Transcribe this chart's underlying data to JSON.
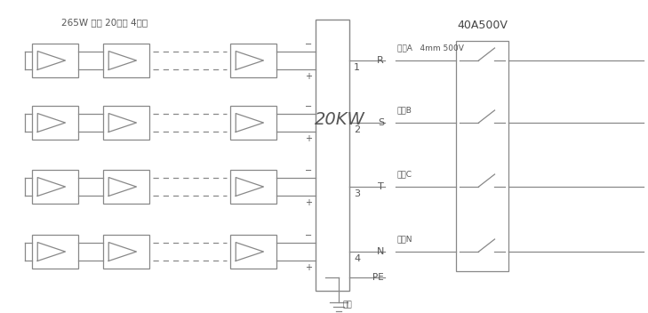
{
  "title": "265W 组件 20串联 4并联",
  "bg_color": "#ffffff",
  "line_color": "#888888",
  "text_color": "#555555",
  "inverter_label": "20KW",
  "breaker_label": "40A500V",
  "phase_labels": [
    "相线A   4mm 500V",
    "相线B",
    "相线C",
    "零线N"
  ],
  "ground_label": "地线",
  "row_labels": [
    "1",
    "2",
    "3",
    "4"
  ],
  "rstn_labels": [
    "R",
    "S",
    "T",
    "N"
  ],
  "pe_label": "PE",
  "fig_width": 7.29,
  "fig_height": 3.52,
  "dpi": 100
}
